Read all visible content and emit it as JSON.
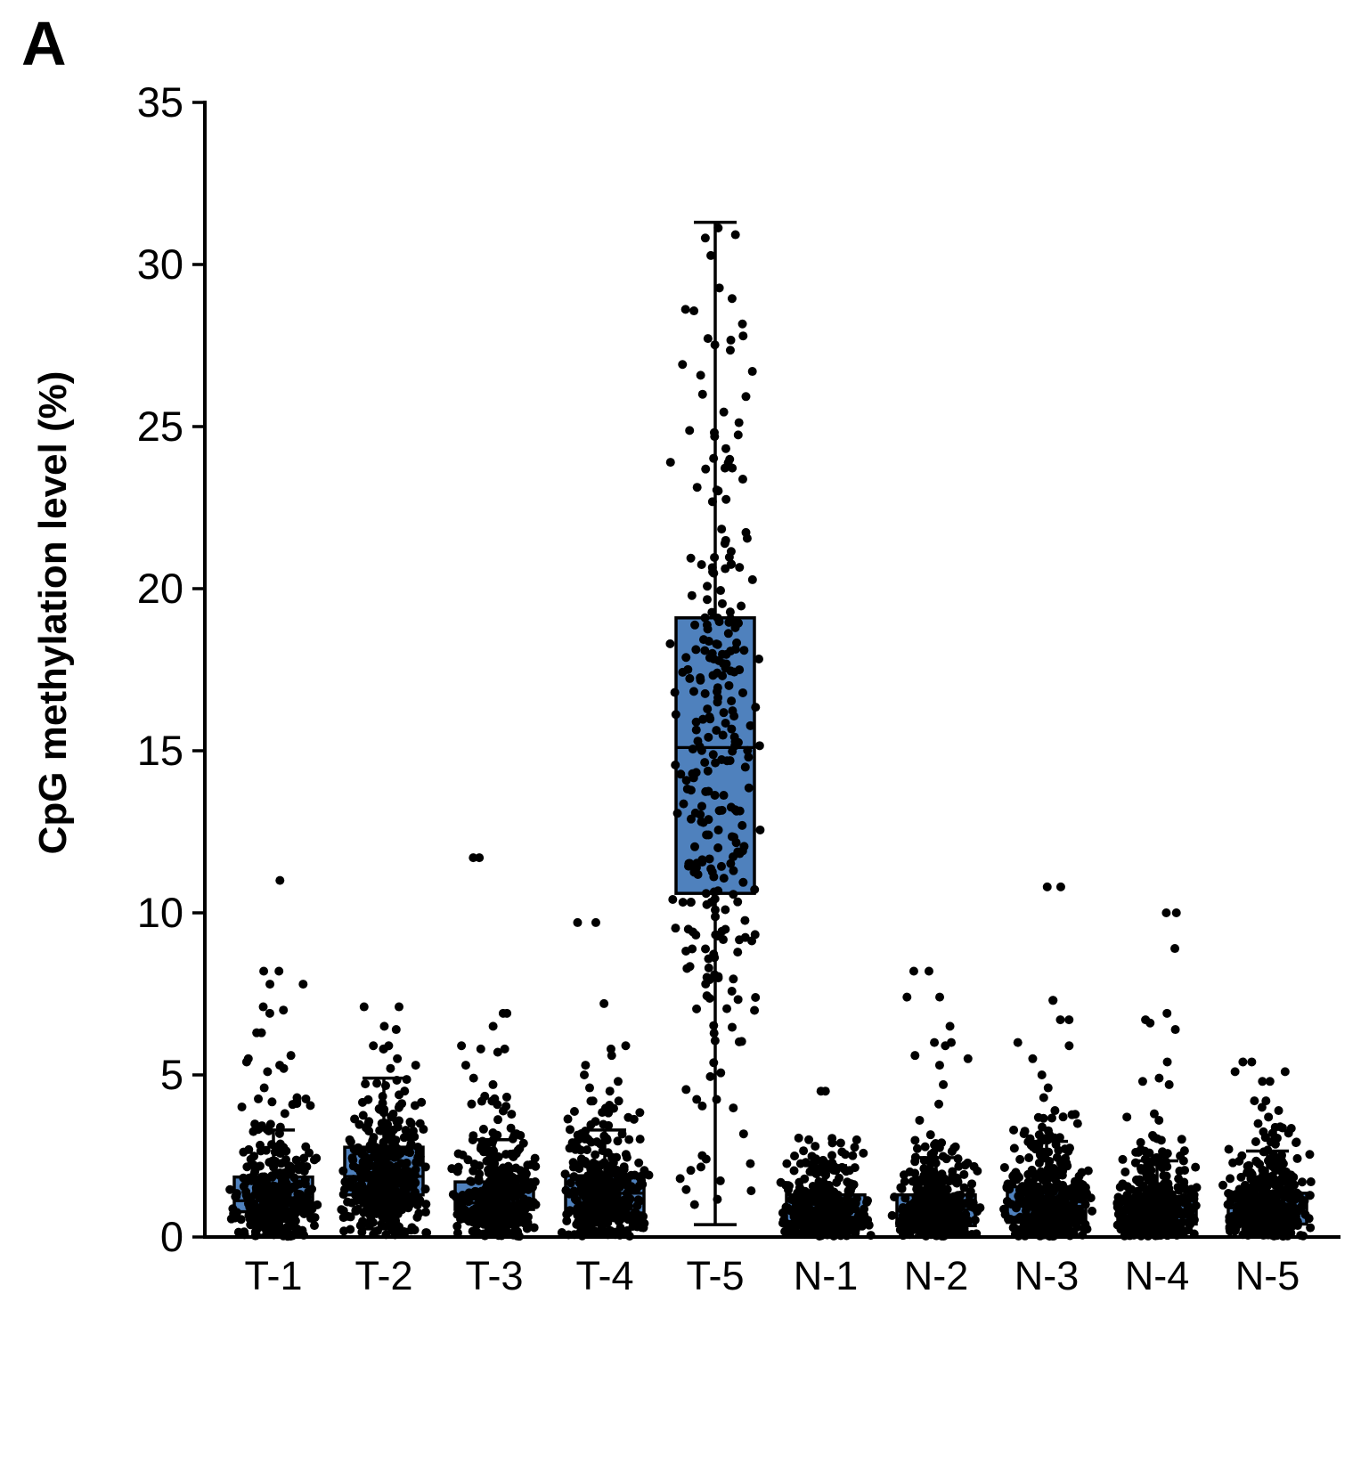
{
  "panel_label": "A",
  "colors": {
    "box_fill": "#4F81BD",
    "box_border": "#000000",
    "dot": "#000000",
    "axis": "#000000",
    "background": "#FFFFFF"
  },
  "chart_data": {
    "type": "boxplot_with_jitter",
    "title": "",
    "xlabel": "",
    "ylabel": "CpG methylation level (%)",
    "ylim": [
      0,
      35
    ],
    "yticks": [
      0,
      5,
      10,
      15,
      20,
      25,
      30,
      35
    ],
    "grid": false,
    "legend": false,
    "categories": [
      "T-1",
      "T-2",
      "T-3",
      "T-4",
      "T-5",
      "N-1",
      "N-2",
      "N-3",
      "N-4",
      "N-5"
    ],
    "jitter_seed": 42,
    "boxes": [
      {
        "label": "T-1",
        "whisker_low": 0.05,
        "q1": 0.78,
        "median": 1.12,
        "q3": 1.85,
        "whisker_high": 3.3,
        "outliers": [
          11.0,
          8.2,
          8.2,
          7.8,
          7.8,
          7.1,
          7.0,
          6.9,
          6.3,
          6.3,
          5.6,
          5.5,
          5.4,
          5.3,
          5.2,
          5.1,
          4.6
        ],
        "points": {
          "count": 370,
          "bands": [
            [
              0.02,
              0.5,
              0.17
            ],
            [
              0.5,
              1.0,
              0.3
            ],
            [
              1.0,
              1.6,
              0.26
            ],
            [
              1.6,
              2.2,
              0.14
            ],
            [
              2.2,
              3.0,
              0.08
            ],
            [
              3.0,
              4.3,
              0.05
            ]
          ]
        }
      },
      {
        "label": "T-2",
        "whisker_low": 0.25,
        "q1": 1.3,
        "median": 1.87,
        "q3": 2.77,
        "whisker_high": 4.9,
        "outliers": [
          7.1,
          7.1,
          6.5,
          6.4,
          5.9,
          5.9,
          5.8,
          5.8,
          5.5,
          5.3,
          5.2
        ],
        "points": {
          "count": 420,
          "bands": [
            [
              0.05,
              0.7,
              0.1
            ],
            [
              0.7,
              1.3,
              0.24
            ],
            [
              1.3,
              2.0,
              0.28
            ],
            [
              2.0,
              2.8,
              0.22
            ],
            [
              2.8,
              3.6,
              0.1
            ],
            [
              3.6,
              4.9,
              0.06
            ]
          ]
        }
      },
      {
        "label": "T-3",
        "whisker_low": 0.1,
        "q1": 0.85,
        "median": 1.05,
        "q3": 1.7,
        "whisker_high": 3.0,
        "outliers": [
          11.7,
          11.7,
          6.9,
          6.9,
          6.5,
          5.9,
          5.8,
          5.8,
          5.7,
          5.3,
          4.9,
          4.7
        ],
        "points": {
          "count": 400,
          "bands": [
            [
              0.02,
              0.5,
              0.16
            ],
            [
              0.5,
              1.0,
              0.3
            ],
            [
              1.0,
              1.6,
              0.26
            ],
            [
              1.6,
              2.2,
              0.14
            ],
            [
              2.2,
              3.0,
              0.09
            ],
            [
              3.0,
              4.4,
              0.05
            ]
          ]
        }
      },
      {
        "label": "T-4",
        "whisker_low": 0.05,
        "q1": 0.74,
        "median": 1.35,
        "q3": 1.89,
        "whisker_high": 3.3,
        "outliers": [
          9.7,
          9.7,
          7.2,
          5.9,
          5.8,
          5.6,
          5.3,
          5.0,
          4.8,
          4.6,
          4.5
        ],
        "points": {
          "count": 380,
          "bands": [
            [
              0.02,
              0.5,
              0.15
            ],
            [
              0.5,
              1.0,
              0.28
            ],
            [
              1.0,
              1.7,
              0.27
            ],
            [
              1.7,
              2.3,
              0.16
            ],
            [
              2.3,
              3.2,
              0.09
            ],
            [
              3.2,
              4.2,
              0.05
            ]
          ]
        }
      },
      {
        "label": "T-5",
        "whisker_low": 0.38,
        "q1": 10.6,
        "median": 15.1,
        "q3": 19.1,
        "whisker_high": 31.3,
        "outliers": [],
        "points": {
          "count": 300,
          "bands": [
            [
              0.4,
              2.0,
              0.02
            ],
            [
              2.0,
              5.0,
              0.04
            ],
            [
              5.0,
              7.5,
              0.05
            ],
            [
              7.5,
              9.2,
              0.07
            ],
            [
              9.2,
              10.6,
              0.08
            ],
            [
              10.6,
              15.1,
              0.26
            ],
            [
              15.1,
              19.1,
              0.26
            ],
            [
              19.1,
              22.0,
              0.09
            ],
            [
              22.0,
              25.0,
              0.06
            ],
            [
              25.0,
              28.0,
              0.04
            ],
            [
              28.0,
              31.3,
              0.03
            ]
          ]
        }
      },
      {
        "label": "N-1",
        "whisker_low": 0.03,
        "q1": 0.33,
        "median": 0.8,
        "q3": 1.3,
        "whisker_high": 2.2,
        "outliers": [
          4.5,
          4.5,
          3.0,
          2.9,
          2.8
        ],
        "points": {
          "count": 360,
          "bands": [
            [
              0.02,
              0.4,
              0.22
            ],
            [
              0.4,
              0.8,
              0.28
            ],
            [
              0.8,
              1.3,
              0.25
            ],
            [
              1.3,
              1.8,
              0.13
            ],
            [
              1.8,
              2.4,
              0.08
            ],
            [
              2.4,
              3.1,
              0.04
            ]
          ]
        }
      },
      {
        "label": "N-2",
        "whisker_low": 0.03,
        "q1": 0.35,
        "median": 0.85,
        "q3": 1.3,
        "whisker_high": 2.45,
        "outliers": [
          8.2,
          8.2,
          7.4,
          7.4,
          6.5,
          6.0,
          6.0,
          5.9,
          5.6,
          5.5,
          5.3,
          4.7,
          4.1,
          3.6
        ],
        "points": {
          "count": 370,
          "bands": [
            [
              0.02,
              0.4,
              0.22
            ],
            [
              0.4,
              0.8,
              0.27
            ],
            [
              0.8,
              1.3,
              0.25
            ],
            [
              1.3,
              1.8,
              0.13
            ],
            [
              1.8,
              2.4,
              0.08
            ],
            [
              2.4,
              3.2,
              0.05
            ]
          ]
        }
      },
      {
        "label": "N-3",
        "whisker_low": 0.03,
        "q1": 0.45,
        "median": 0.95,
        "q3": 1.55,
        "whisker_high": 2.95,
        "outliers": [
          10.8,
          10.8,
          7.3,
          7.3,
          6.7,
          6.7,
          6.0,
          5.9,
          5.5,
          5.0,
          4.6,
          4.3,
          3.9,
          3.5
        ],
        "points": {
          "count": 390,
          "bands": [
            [
              0.02,
              0.45,
              0.2
            ],
            [
              0.45,
              0.95,
              0.27
            ],
            [
              0.95,
              1.55,
              0.26
            ],
            [
              1.55,
              2.1,
              0.13
            ],
            [
              2.1,
              2.9,
              0.09
            ],
            [
              2.9,
              3.8,
              0.05
            ]
          ]
        }
      },
      {
        "label": "N-4",
        "whisker_low": 0.03,
        "q1": 0.4,
        "median": 0.85,
        "q3": 1.25,
        "whisker_high": 2.35,
        "outliers": [
          10.0,
          10.0,
          8.9,
          6.9,
          6.7,
          6.6,
          6.4,
          5.4,
          4.9,
          4.8,
          4.7,
          3.8,
          3.7,
          3.6
        ],
        "points": {
          "count": 380,
          "bands": [
            [
              0.02,
              0.4,
              0.22
            ],
            [
              0.4,
              0.8,
              0.27
            ],
            [
              0.8,
              1.25,
              0.25
            ],
            [
              1.25,
              1.8,
              0.13
            ],
            [
              1.8,
              2.4,
              0.08
            ],
            [
              2.4,
              3.2,
              0.05
            ]
          ]
        }
      },
      {
        "label": "N-5",
        "whisker_low": 0.03,
        "q1": 0.4,
        "median": 0.9,
        "q3": 1.35,
        "whisker_high": 2.65,
        "outliers": [
          5.4,
          5.4,
          5.1,
          5.1,
          4.8,
          4.8,
          4.2,
          4.2,
          4.0,
          3.9,
          3.7,
          3.5,
          3.4
        ],
        "points": {
          "count": 380,
          "bands": [
            [
              0.02,
              0.4,
              0.21
            ],
            [
              0.4,
              0.85,
              0.27
            ],
            [
              0.85,
              1.35,
              0.25
            ],
            [
              1.35,
              1.9,
              0.13
            ],
            [
              1.9,
              2.6,
              0.09
            ],
            [
              2.6,
              3.4,
              0.05
            ]
          ]
        }
      }
    ]
  }
}
